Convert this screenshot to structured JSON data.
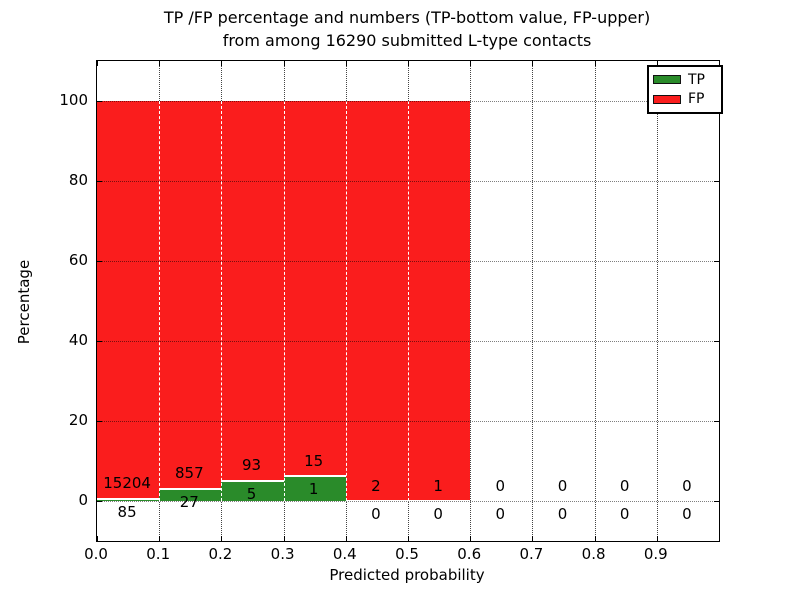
{
  "title": {
    "line1": "TP /FP percentage and numbers (TP-bottom value, FP-upper)",
    "line2": "from among 16290 submitted L-type contacts"
  },
  "chart_data": {
    "type": "bar",
    "stacked": true,
    "title": "TP /FP percentage and numbers (TP-bottom value, FP-upper) from among 16290 submitted L-type contacts",
    "xlabel": "Predicted probability",
    "ylabel": "Percentage",
    "xlim": [
      0.0,
      1.0
    ],
    "ylim": [
      -10,
      110
    ],
    "grid": "dotted",
    "total_contacts": 16290,
    "bin_width": 0.1,
    "bin_starts": [
      0.0,
      0.1,
      0.2,
      0.3,
      0.4,
      0.5,
      0.6,
      0.7,
      0.8,
      0.9
    ],
    "bin_centers": [
      0.05,
      0.15,
      0.25,
      0.35,
      0.45,
      0.55,
      0.65,
      0.75,
      0.85,
      0.95
    ],
    "xticks": {
      "values": [
        0.0,
        0.1,
        0.2,
        0.3,
        0.4,
        0.5,
        0.6,
        0.7,
        0.8,
        0.9
      ],
      "labels": [
        "0.0",
        "0.1",
        "0.2",
        "0.3",
        "0.4",
        "0.5",
        "0.6",
        "0.7",
        "0.8",
        "0.9"
      ]
    },
    "yticks": {
      "values": [
        0,
        20,
        40,
        60,
        80,
        100
      ],
      "labels": [
        "0",
        "20",
        "40",
        "60",
        "80",
        "100"
      ]
    },
    "series": [
      {
        "name": "TP",
        "color": "#2a8b2a",
        "counts": [
          85,
          27,
          5,
          1,
          0,
          0,
          0,
          0,
          0,
          0
        ]
      },
      {
        "name": "FP",
        "color": "#fa1d1d",
        "counts": [
          15204,
          857,
          93,
          15,
          2,
          1,
          0,
          0,
          0,
          0
        ]
      }
    ],
    "tp_percent_of_bin": [
      0.56,
      3.05,
      5.1,
      6.25,
      0.0,
      0.0,
      null,
      null,
      null,
      null
    ],
    "legend": {
      "position": "upper right",
      "entries": [
        {
          "label": "TP",
          "color": "#2a8b2a"
        },
        {
          "label": "FP",
          "color": "#fa1d1d"
        }
      ]
    }
  }
}
